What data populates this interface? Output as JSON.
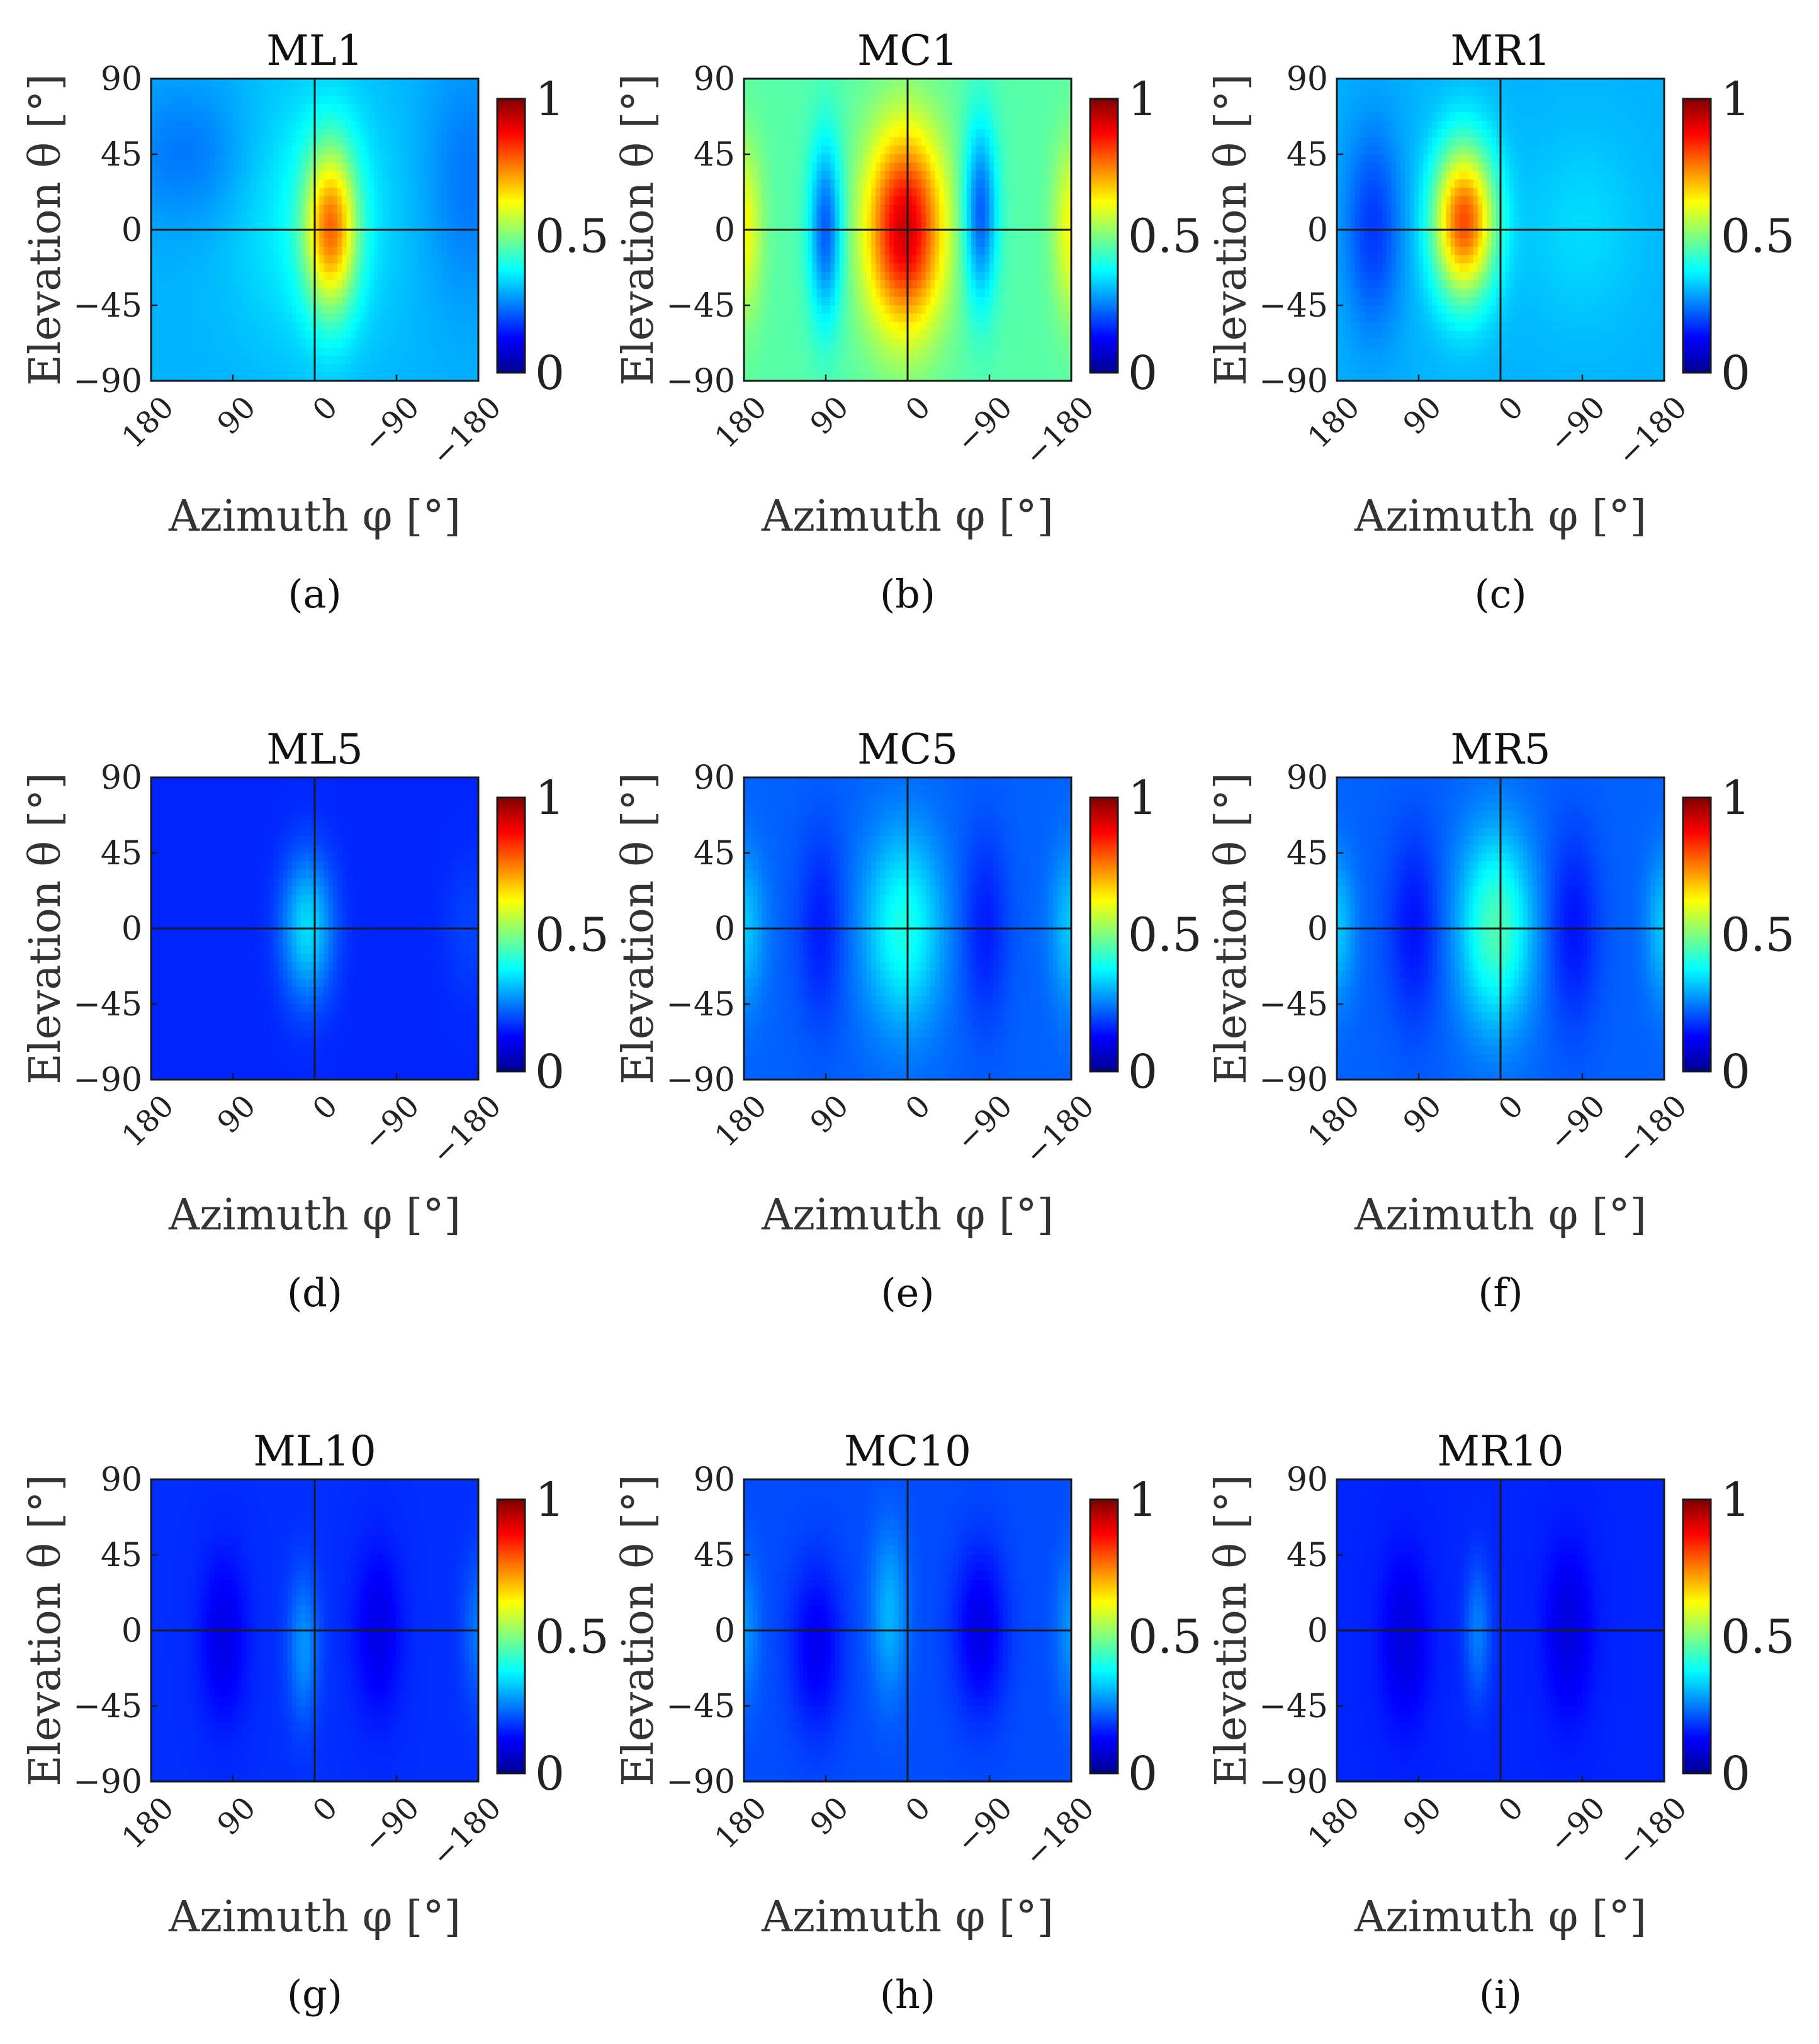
{
  "chart_data": [
    {
      "type": "heatmap",
      "panel_label": "(a)",
      "title": "ML1",
      "xlabel": "Azimuth φ [°]",
      "ylabel": "Elevation θ [°]",
      "xlim": [
        180,
        -180
      ],
      "ylim": [
        -90,
        90
      ],
      "x_ticks": [
        "180",
        "90",
        "0",
        "−90",
        "−180"
      ],
      "y_ticks": [
        "90",
        "45",
        "0",
        "−45",
        "−90"
      ],
      "colorbar": {
        "range": [
          0,
          1
        ],
        "ticks": [
          "1",
          "0.5",
          "0"
        ],
        "colormap": "jet"
      },
      "base": 0.3,
      "features": [
        {
          "az": -18,
          "el": 0,
          "sigma_az": 20,
          "sigma_el": 34,
          "amp": 0.4
        },
        {
          "az": 0,
          "el": 10,
          "sigma_az": 60,
          "sigma_el": 55,
          "amp": 0.08
        },
        {
          "az": 140,
          "el": 45,
          "sigma_az": 50,
          "sigma_el": 30,
          "amp": -0.06
        },
        {
          "az": -170,
          "el": 30,
          "sigma_az": 35,
          "sigma_el": 50,
          "amp": -0.06
        }
      ]
    },
    {
      "type": "heatmap",
      "panel_label": "(b)",
      "title": "MC1",
      "xlabel": "Azimuth φ [°]",
      "ylabel": "Elevation θ [°]",
      "xlim": [
        180,
        -180
      ],
      "ylim": [
        -90,
        90
      ],
      "x_ticks": [
        "180",
        "90",
        "0",
        "−90",
        "−180"
      ],
      "y_ticks": [
        "90",
        "45",
        "0",
        "−45",
        "−90"
      ],
      "colorbar": {
        "range": [
          0,
          1
        ],
        "ticks": [
          "1",
          "0.5",
          "0"
        ],
        "colormap": "jet"
      },
      "base": 0.46,
      "features": [
        {
          "az": 3,
          "el": 0,
          "sigma_az": 30,
          "sigma_el": 42,
          "amp": 0.46
        },
        {
          "az": 90,
          "el": 0,
          "sigma_az": 13,
          "sigma_el": 38,
          "amp": -0.25
        },
        {
          "az": -80,
          "el": 10,
          "sigma_az": 13,
          "sigma_el": 38,
          "amp": -0.25
        },
        {
          "az": 180,
          "el": 0,
          "sigma_az": 14,
          "sigma_el": 36,
          "amp": 0.16
        },
        {
          "az": -180,
          "el": 0,
          "sigma_az": 14,
          "sigma_el": 36,
          "amp": 0.16
        }
      ]
    },
    {
      "type": "heatmap",
      "panel_label": "(c)",
      "title": "MR1",
      "xlabel": "Azimuth φ [°]",
      "ylabel": "Elevation θ [°]",
      "xlim": [
        180,
        -180
      ],
      "ylim": [
        -90,
        90
      ],
      "x_ticks": [
        "180",
        "90",
        "0",
        "−90",
        "−180"
      ],
      "y_ticks": [
        "90",
        "45",
        "0",
        "−45",
        "−90"
      ],
      "colorbar": {
        "range": [
          0,
          1
        ],
        "ticks": [
          "1",
          "0.5",
          "0"
        ],
        "colormap": "jet"
      },
      "base": 0.3,
      "features": [
        {
          "az": 40,
          "el": 5,
          "sigma_az": 24,
          "sigma_el": 32,
          "amp": 0.5
        },
        {
          "az": 140,
          "el": 0,
          "sigma_az": 22,
          "sigma_el": 42,
          "amp": -0.12
        },
        {
          "az": -90,
          "el": 0,
          "sigma_az": 45,
          "sigma_el": 40,
          "amp": 0.04
        }
      ]
    },
    {
      "type": "heatmap",
      "panel_label": "(d)",
      "title": "ML5",
      "xlabel": "Azimuth φ [°]",
      "ylabel": "Elevation θ [°]",
      "xlim": [
        180,
        -180
      ],
      "ylim": [
        -90,
        90
      ],
      "x_ticks": [
        "180",
        "90",
        "0",
        "−90",
        "−180"
      ],
      "y_ticks": [
        "90",
        "45",
        "0",
        "−45",
        "−90"
      ],
      "colorbar": {
        "range": [
          0,
          1
        ],
        "ticks": [
          "1",
          "0.5",
          "0"
        ],
        "colormap": "jet"
      },
      "base": 0.16,
      "features": [
        {
          "az": 8,
          "el": 0,
          "sigma_az": 20,
          "sigma_el": 30,
          "amp": 0.18
        },
        {
          "az": -170,
          "el": 0,
          "sigma_az": 20,
          "sigma_el": 30,
          "amp": 0.03
        }
      ]
    },
    {
      "type": "heatmap",
      "panel_label": "(e)",
      "title": "MC5",
      "xlabel": "Azimuth φ [°]",
      "ylabel": "Elevation θ [°]",
      "xlim": [
        180,
        -180
      ],
      "ylim": [
        -90,
        90
      ],
      "x_ticks": [
        "180",
        "90",
        "0",
        "−90",
        "−180"
      ],
      "y_ticks": [
        "90",
        "45",
        "0",
        "−45",
        "−90"
      ],
      "colorbar": {
        "range": [
          0,
          1
        ],
        "ticks": [
          "1",
          "0.5",
          "0"
        ],
        "colormap": "jet"
      },
      "base": 0.22,
      "features": [
        {
          "az": 5,
          "el": 0,
          "sigma_az": 30,
          "sigma_el": 40,
          "amp": 0.18
        },
        {
          "az": 95,
          "el": 0,
          "sigma_az": 18,
          "sigma_el": 40,
          "amp": -0.07
        },
        {
          "az": -85,
          "el": 0,
          "sigma_az": 18,
          "sigma_el": 40,
          "amp": -0.07
        },
        {
          "az": 180,
          "el": 0,
          "sigma_az": 16,
          "sigma_el": 32,
          "amp": 0.1
        },
        {
          "az": -180,
          "el": 0,
          "sigma_az": 16,
          "sigma_el": 32,
          "amp": 0.1
        }
      ]
    },
    {
      "type": "heatmap",
      "panel_label": "(f)",
      "title": "MR5",
      "xlabel": "Azimuth φ [°]",
      "ylabel": "Elevation θ [°]",
      "xlim": [
        180,
        -180
      ],
      "ylim": [
        -90,
        90
      ],
      "x_ticks": [
        "180",
        "90",
        "0",
        "−90",
        "−180"
      ],
      "y_ticks": [
        "90",
        "45",
        "0",
        "−45",
        "−90"
      ],
      "colorbar": {
        "range": [
          0,
          1
        ],
        "ticks": [
          "1",
          "0.5",
          "0"
        ],
        "colormap": "jet"
      },
      "base": 0.22,
      "features": [
        {
          "az": 5,
          "el": 0,
          "sigma_az": 28,
          "sigma_el": 40,
          "amp": 0.23
        },
        {
          "az": 95,
          "el": 0,
          "sigma_az": 20,
          "sigma_el": 40,
          "amp": -0.08
        },
        {
          "az": -80,
          "el": 0,
          "sigma_az": 20,
          "sigma_el": 40,
          "amp": -0.08
        },
        {
          "az": 180,
          "el": 0,
          "sigma_az": 14,
          "sigma_el": 30,
          "amp": 0.1
        },
        {
          "az": -180,
          "el": 0,
          "sigma_az": 14,
          "sigma_el": 30,
          "amp": 0.1
        }
      ]
    },
    {
      "type": "heatmap",
      "panel_label": "(g)",
      "title": "ML10",
      "xlabel": "Azimuth φ [°]",
      "ylabel": "Elevation θ [°]",
      "xlim": [
        180,
        -180
      ],
      "ylim": [
        -90,
        90
      ],
      "x_ticks": [
        "180",
        "90",
        "0",
        "−90",
        "−180"
      ],
      "y_ticks": [
        "90",
        "45",
        "0",
        "−45",
        "−90"
      ],
      "colorbar": {
        "range": [
          0,
          1
        ],
        "ticks": [
          "1",
          "0.5",
          "0"
        ],
        "colormap": "jet"
      },
      "base": 0.17,
      "features": [
        {
          "az": 100,
          "el": -5,
          "sigma_az": 18,
          "sigma_el": 35,
          "amp": -0.07
        },
        {
          "az": -70,
          "el": 0,
          "sigma_az": 18,
          "sigma_el": 35,
          "amp": -0.07
        },
        {
          "az": 12,
          "el": -10,
          "sigma_az": 12,
          "sigma_el": 30,
          "amp": 0.1
        },
        {
          "az": -180,
          "el": 0,
          "sigma_az": 12,
          "sigma_el": 30,
          "amp": 0.07
        }
      ]
    },
    {
      "type": "heatmap",
      "panel_label": "(h)",
      "title": "MC10",
      "xlabel": "Azimuth φ [°]",
      "ylabel": "Elevation θ [°]",
      "xlim": [
        180,
        -180
      ],
      "ylim": [
        -90,
        90
      ],
      "x_ticks": [
        "180",
        "90",
        "0",
        "−90",
        "−180"
      ],
      "y_ticks": [
        "90",
        "45",
        "0",
        "−45",
        "−90"
      ],
      "colorbar": {
        "range": [
          0,
          1
        ],
        "ticks": [
          "1",
          "0.5",
          "0"
        ],
        "colormap": "jet"
      },
      "base": 0.2,
      "features": [
        {
          "az": 100,
          "el": -10,
          "sigma_az": 20,
          "sigma_el": 35,
          "amp": -0.09
        },
        {
          "az": -80,
          "el": 0,
          "sigma_az": 20,
          "sigma_el": 35,
          "amp": -0.1
        },
        {
          "az": 20,
          "el": 10,
          "sigma_az": 14,
          "sigma_el": 35,
          "amp": 0.1
        },
        {
          "az": 180,
          "el": 0,
          "sigma_az": 12,
          "sigma_el": 30,
          "amp": 0.07
        },
        {
          "az": -180,
          "el": 0,
          "sigma_az": 12,
          "sigma_el": 30,
          "amp": 0.07
        }
      ]
    },
    {
      "type": "heatmap",
      "panel_label": "(i)",
      "title": "MR10",
      "xlabel": "Azimuth φ [°]",
      "ylabel": "Elevation θ [°]",
      "xlim": [
        180,
        -180
      ],
      "ylim": [
        -90,
        90
      ],
      "x_ticks": [
        "180",
        "90",
        "0",
        "−90",
        "−180"
      ],
      "y_ticks": [
        "90",
        "45",
        "0",
        "−45",
        "−90"
      ],
      "colorbar": {
        "range": [
          0,
          1
        ],
        "ticks": [
          "1",
          "0.5",
          "0"
        ],
        "colormap": "jet"
      },
      "base": 0.16,
      "features": [
        {
          "az": 105,
          "el": -5,
          "sigma_az": 18,
          "sigma_el": 35,
          "amp": -0.07
        },
        {
          "az": -75,
          "el": 0,
          "sigma_az": 18,
          "sigma_el": 35,
          "amp": -0.07
        },
        {
          "az": 25,
          "el": 0,
          "sigma_az": 10,
          "sigma_el": 28,
          "amp": 0.09
        }
      ]
    }
  ]
}
